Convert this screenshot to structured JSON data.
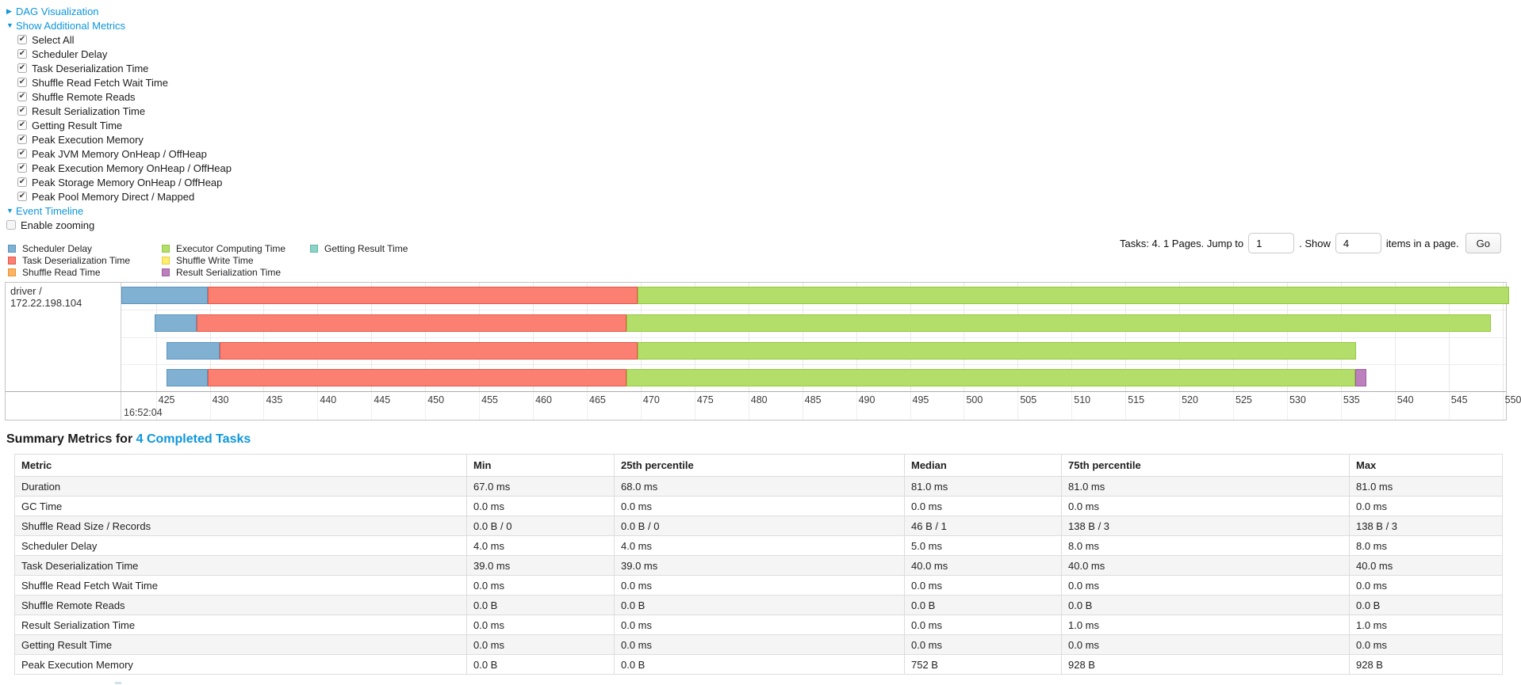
{
  "controls": {
    "dag_link": "DAG Visualization",
    "metrics_link": "Show Additional Metrics",
    "metric_checkboxes": [
      "Select All",
      "Scheduler Delay",
      "Task Deserialization Time",
      "Shuffle Read Fetch Wait Time",
      "Shuffle Remote Reads",
      "Result Serialization Time",
      "Getting Result Time",
      "Peak Execution Memory",
      "Peak JVM Memory OnHeap / OffHeap",
      "Peak Execution Memory OnHeap / OffHeap",
      "Peak Storage Memory OnHeap / OffHeap",
      "Peak Pool Memory Direct / Mapped"
    ],
    "event_timeline_link": "Event Timeline",
    "enable_zooming_label": "Enable zooming",
    "enable_zooming_checked": false
  },
  "pagination": {
    "prefix": "Tasks: 4. 1 Pages. Jump to",
    "jump_value": "1",
    "mid": ". Show",
    "show_value": "4",
    "suffix": "items in a page.",
    "go_label": "Go"
  },
  "legend": [
    {
      "label": "Scheduler Delay",
      "color": "#80B1D3",
      "border": "#5B94BE"
    },
    {
      "label": "Task Deserialization Time",
      "color": "#FB8072",
      "border": "#E2584A"
    },
    {
      "label": "Shuffle Read Time",
      "color": "#FDB462",
      "border": "#E69138"
    },
    {
      "label": "Executor Computing Time",
      "color": "#B3DE69",
      "border": "#94C83D"
    },
    {
      "label": "Shuffle Write Time",
      "color": "#FFED6F",
      "border": "#E6CF3E"
    },
    {
      "label": "Result Serialization Time",
      "color": "#BC80BD",
      "border": "#A05BA1"
    },
    {
      "label": "Getting Result Time",
      "color": "#8DD3C7",
      "border": "#5FB8A8"
    }
  ],
  "chart_data": {
    "type": "timeline",
    "title": "Event Timeline",
    "group_label": "driver / 172.22.198.104",
    "axis": {
      "unit": "milliseconds after 16:52:04",
      "tick_start": 425,
      "tick_end": 550,
      "tick_step": 5,
      "major_label": "16:52:04",
      "start_pct": 2.5,
      "pct_per_ms": 0.778
    },
    "tasks": [
      {
        "name": "task-row-1",
        "segments": [
          {
            "metric": "Scheduler Delay",
            "start_ms": 421.8,
            "end_ms": 429.8
          },
          {
            "metric": "Task Deserialization Time",
            "start_ms": 429.8,
            "end_ms": 469.7
          },
          {
            "metric": "Executor Computing Time",
            "start_ms": 469.7,
            "end_ms": 550.6
          }
        ]
      },
      {
        "name": "task-row-2",
        "segments": [
          {
            "metric": "Scheduler Delay",
            "start_ms": 424.9,
            "end_ms": 428.8
          },
          {
            "metric": "Task Deserialization Time",
            "start_ms": 428.8,
            "end_ms": 468.7
          },
          {
            "metric": "Executor Computing Time",
            "start_ms": 468.7,
            "end_ms": 548.9
          }
        ]
      },
      {
        "name": "task-row-3",
        "segments": [
          {
            "metric": "Scheduler Delay",
            "start_ms": 426.0,
            "end_ms": 430.9
          },
          {
            "metric": "Task Deserialization Time",
            "start_ms": 430.9,
            "end_ms": 469.7
          },
          {
            "metric": "Executor Computing Time",
            "start_ms": 469.7,
            "end_ms": 536.4
          }
        ]
      },
      {
        "name": "task-row-4",
        "segments": [
          {
            "metric": "Scheduler Delay",
            "start_ms": 426.0,
            "end_ms": 429.8
          },
          {
            "metric": "Task Deserialization Time",
            "start_ms": 429.8,
            "end_ms": 468.7
          },
          {
            "metric": "Executor Computing Time",
            "start_ms": 468.7,
            "end_ms": 536.3
          },
          {
            "metric": "Result Serialization Time",
            "start_ms": 536.3,
            "end_ms": 537.4
          }
        ]
      }
    ]
  },
  "summary": {
    "title_prefix": "Summary Metrics for",
    "title_link": "4 Completed Tasks",
    "columns": [
      "Metric",
      "Min",
      "25th percentile",
      "Median",
      "75th percentile",
      "Max"
    ],
    "rows": [
      [
        "Duration",
        "67.0 ms",
        "68.0 ms",
        "81.0 ms",
        "81.0 ms",
        "81.0 ms"
      ],
      [
        "GC Time",
        "0.0 ms",
        "0.0 ms",
        "0.0 ms",
        "0.0 ms",
        "0.0 ms"
      ],
      [
        "Shuffle Read Size / Records",
        "0.0 B / 0",
        "0.0 B / 0",
        "46 B / 1",
        "138 B / 3",
        "138 B / 3"
      ],
      [
        "Scheduler Delay",
        "4.0 ms",
        "4.0 ms",
        "5.0 ms",
        "8.0 ms",
        "8.0 ms"
      ],
      [
        "Task Deserialization Time",
        "39.0 ms",
        "39.0 ms",
        "40.0 ms",
        "40.0 ms",
        "40.0 ms"
      ],
      [
        "Shuffle Read Fetch Wait Time",
        "0.0 ms",
        "0.0 ms",
        "0.0 ms",
        "0.0 ms",
        "0.0 ms"
      ],
      [
        "Shuffle Remote Reads",
        "0.0 B",
        "0.0 B",
        "0.0 B",
        "0.0 B",
        "0.0 B"
      ],
      [
        "Result Serialization Time",
        "0.0 ms",
        "0.0 ms",
        "0.0 ms",
        "1.0 ms",
        "1.0 ms"
      ],
      [
        "Getting Result Time",
        "0.0 ms",
        "0.0 ms",
        "0.0 ms",
        "0.0 ms",
        "0.0 ms"
      ],
      [
        "Peak Execution Memory",
        "0.0 B",
        "0.0 B",
        "752 B",
        "928 B",
        "928 B"
      ]
    ]
  }
}
